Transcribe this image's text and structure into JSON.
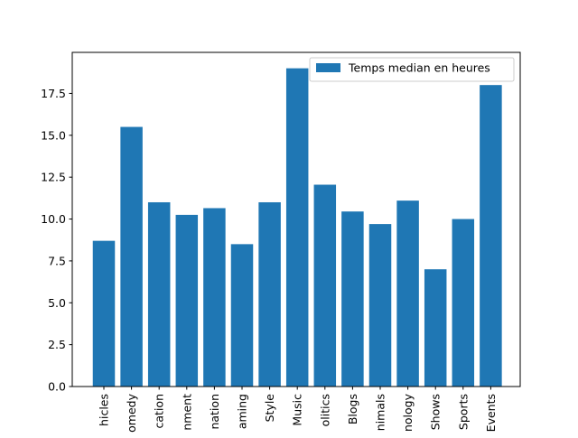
{
  "chart_data": {
    "type": "bar",
    "title": "",
    "xlabel": "",
    "ylabel": "",
    "categories": [
      "Autos & Vehicles",
      "Comedy",
      "Education",
      "Entertainment",
      "Film & Animation",
      "Gaming",
      "Howto & Style",
      "Music",
      "News & Politics",
      "People & Blogs",
      "Pets & Animals",
      "Science & Technology",
      "Shows",
      "Sports",
      "Travel & Events"
    ],
    "categories_visible": [
      "hicles",
      "omedy",
      "cation",
      "nment",
      "nation",
      "aming",
      "Style",
      "Music",
      "olitics",
      "Blogs",
      "nimals",
      "nology",
      "Shows",
      "Sports",
      "Events"
    ],
    "series": [
      {
        "name": "Temps median en heures",
        "values": [
          8.7,
          15.5,
          11.0,
          10.25,
          10.65,
          8.5,
          11.0,
          19.0,
          12.05,
          10.45,
          9.7,
          11.1,
          7.0,
          10.0,
          18.0
        ],
        "color": "#1f77b4"
      }
    ],
    "ylim": [
      0,
      19.95
    ],
    "yticks": [
      0.0,
      2.5,
      5.0,
      7.5,
      10.0,
      12.5,
      15.0,
      17.5
    ],
    "ytick_labels": [
      "0.0",
      "2.5",
      "5.0",
      "7.5",
      "10.0",
      "12.5",
      "15.0",
      "17.5"
    ],
    "grid": false,
    "legend_position": "top-right"
  }
}
